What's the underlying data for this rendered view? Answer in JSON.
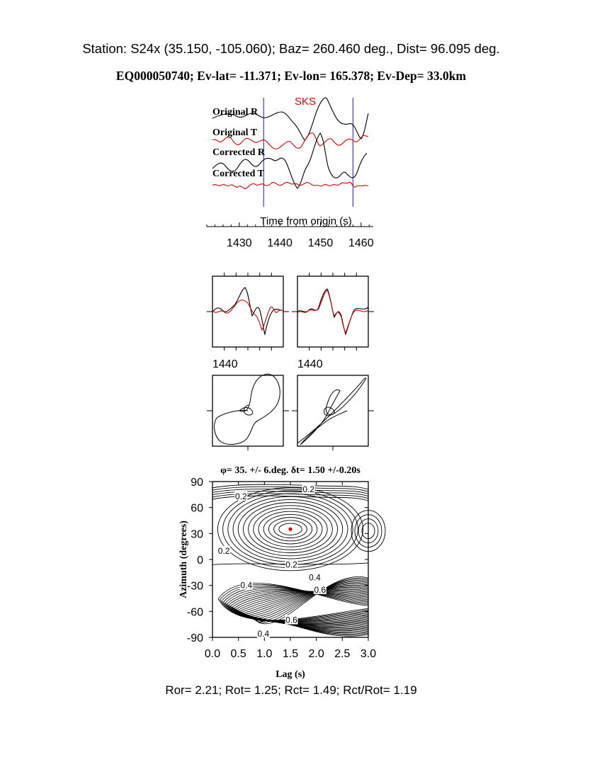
{
  "header": {
    "station_line": "Station: S24x (35.150, -105.060); Baz=  260.460 deg., Dist=   96.095 deg.",
    "event_line": "EQ000050740; Ev-lat= -11.371; Ev-lon= 165.378; Ev-Dep= 33.0km"
  },
  "footer": {
    "stats_line": "Ror= 2.21; Rot= 1.25; Rct= 1.49; Rct/Rot= 1.19"
  },
  "colors": {
    "trace_black": "#000000",
    "trace_red": "#d40000",
    "window_marker": "#1a1acc",
    "best_fit": "#e00000"
  },
  "chart_data": [
    {
      "type": "line",
      "panel": "seismograms",
      "phase_label": "SKS",
      "series": [
        {
          "name": "Original R",
          "color": "black"
        },
        {
          "name": "Original T",
          "color": "red"
        },
        {
          "name": "Corrected R",
          "color": "black"
        },
        {
          "name": "Corrected T",
          "color": "red"
        }
      ],
      "xlabel": "Time from origin (s)",
      "xlim": [
        1422,
        1463
      ],
      "xticks": [
        1430,
        1440,
        1450,
        1460
      ],
      "window_markers_s": [
        1436,
        1458
      ]
    },
    {
      "type": "line",
      "panel": "particle_waveforms",
      "panels": [
        {
          "name": "original",
          "xticks": [
            1440
          ]
        },
        {
          "name": "corrected",
          "xticks": [
            1440
          ]
        }
      ]
    },
    {
      "type": "scatter",
      "panel": "particle_motion",
      "panels": [
        {
          "name": "original"
        },
        {
          "name": "corrected"
        }
      ]
    },
    {
      "type": "heatmap",
      "panel": "energy_grid",
      "title": "φ= 35. +/- 6.deg.  δt= 1.50 +/-0.20s",
      "xlabel": "Lag (s)",
      "ylabel": "Azimuth (degrees)",
      "xlim": [
        0.0,
        3.0
      ],
      "ylim": [
        -90,
        90
      ],
      "xticks": [
        "0.0",
        "0.5",
        "1.0",
        "1.5",
        "2.0",
        "2.5",
        "3.0"
      ],
      "yticks": [
        "90",
        "60",
        "30",
        "0",
        "-30",
        "-60",
        "-90"
      ],
      "best_fit": {
        "lag_s": 1.5,
        "azimuth_deg": 35
      },
      "contour_labels": [
        {
          "text": "0.2",
          "lag": 0.55,
          "az": 73
        },
        {
          "text": "0.2",
          "lag": 1.85,
          "az": 81
        },
        {
          "text": "0.2",
          "lag": 0.22,
          "az": 10
        },
        {
          "text": "0.2",
          "lag": 1.52,
          "az": -6
        },
        {
          "text": "0.4",
          "lag": 0.65,
          "az": -30
        },
        {
          "text": "0.4",
          "lag": 1.97,
          "az": -21
        },
        {
          "text": "0.6",
          "lag": 2.07,
          "az": -35
        },
        {
          "text": "0.6",
          "lag": 1.52,
          "az": -70
        },
        {
          "text": "0.4",
          "lag": 0.98,
          "az": -86
        }
      ]
    }
  ]
}
